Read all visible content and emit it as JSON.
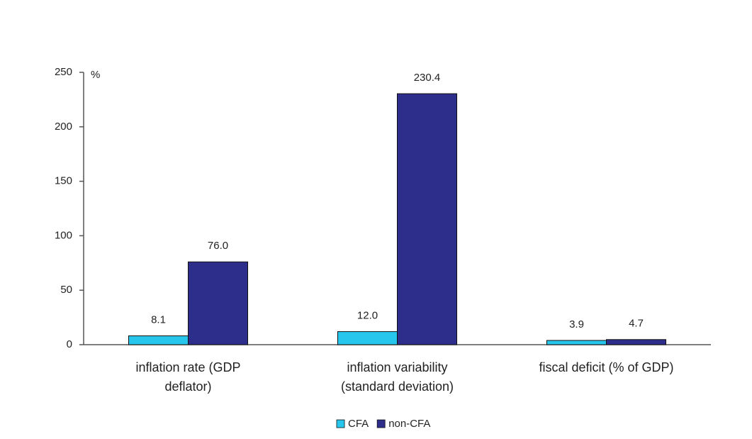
{
  "chart_data": {
    "type": "bar",
    "y_label": "%",
    "categories": [
      [
        "inflation rate (GDP",
        "deflator)"
      ],
      [
        "inflation variability",
        "(standard deviation)"
      ],
      [
        "fiscal deficit (% of GDP)"
      ]
    ],
    "series": [
      {
        "name": "CFA",
        "color": "#27c6ec",
        "values": [
          8.1,
          12.0,
          3.9
        ],
        "value_labels": [
          "8.1",
          "12.0",
          "3.9"
        ]
      },
      {
        "name": "non-CFA",
        "color": "#2d2d8c",
        "values": [
          76.0,
          230.4,
          4.7
        ],
        "value_labels": [
          "76.0",
          "230.4",
          "4.7"
        ]
      }
    ],
    "ylim": [
      0,
      250
    ],
    "yticks": [
      0,
      50,
      100,
      150,
      200,
      250
    ],
    "grid": false,
    "legend": "bottom"
  }
}
